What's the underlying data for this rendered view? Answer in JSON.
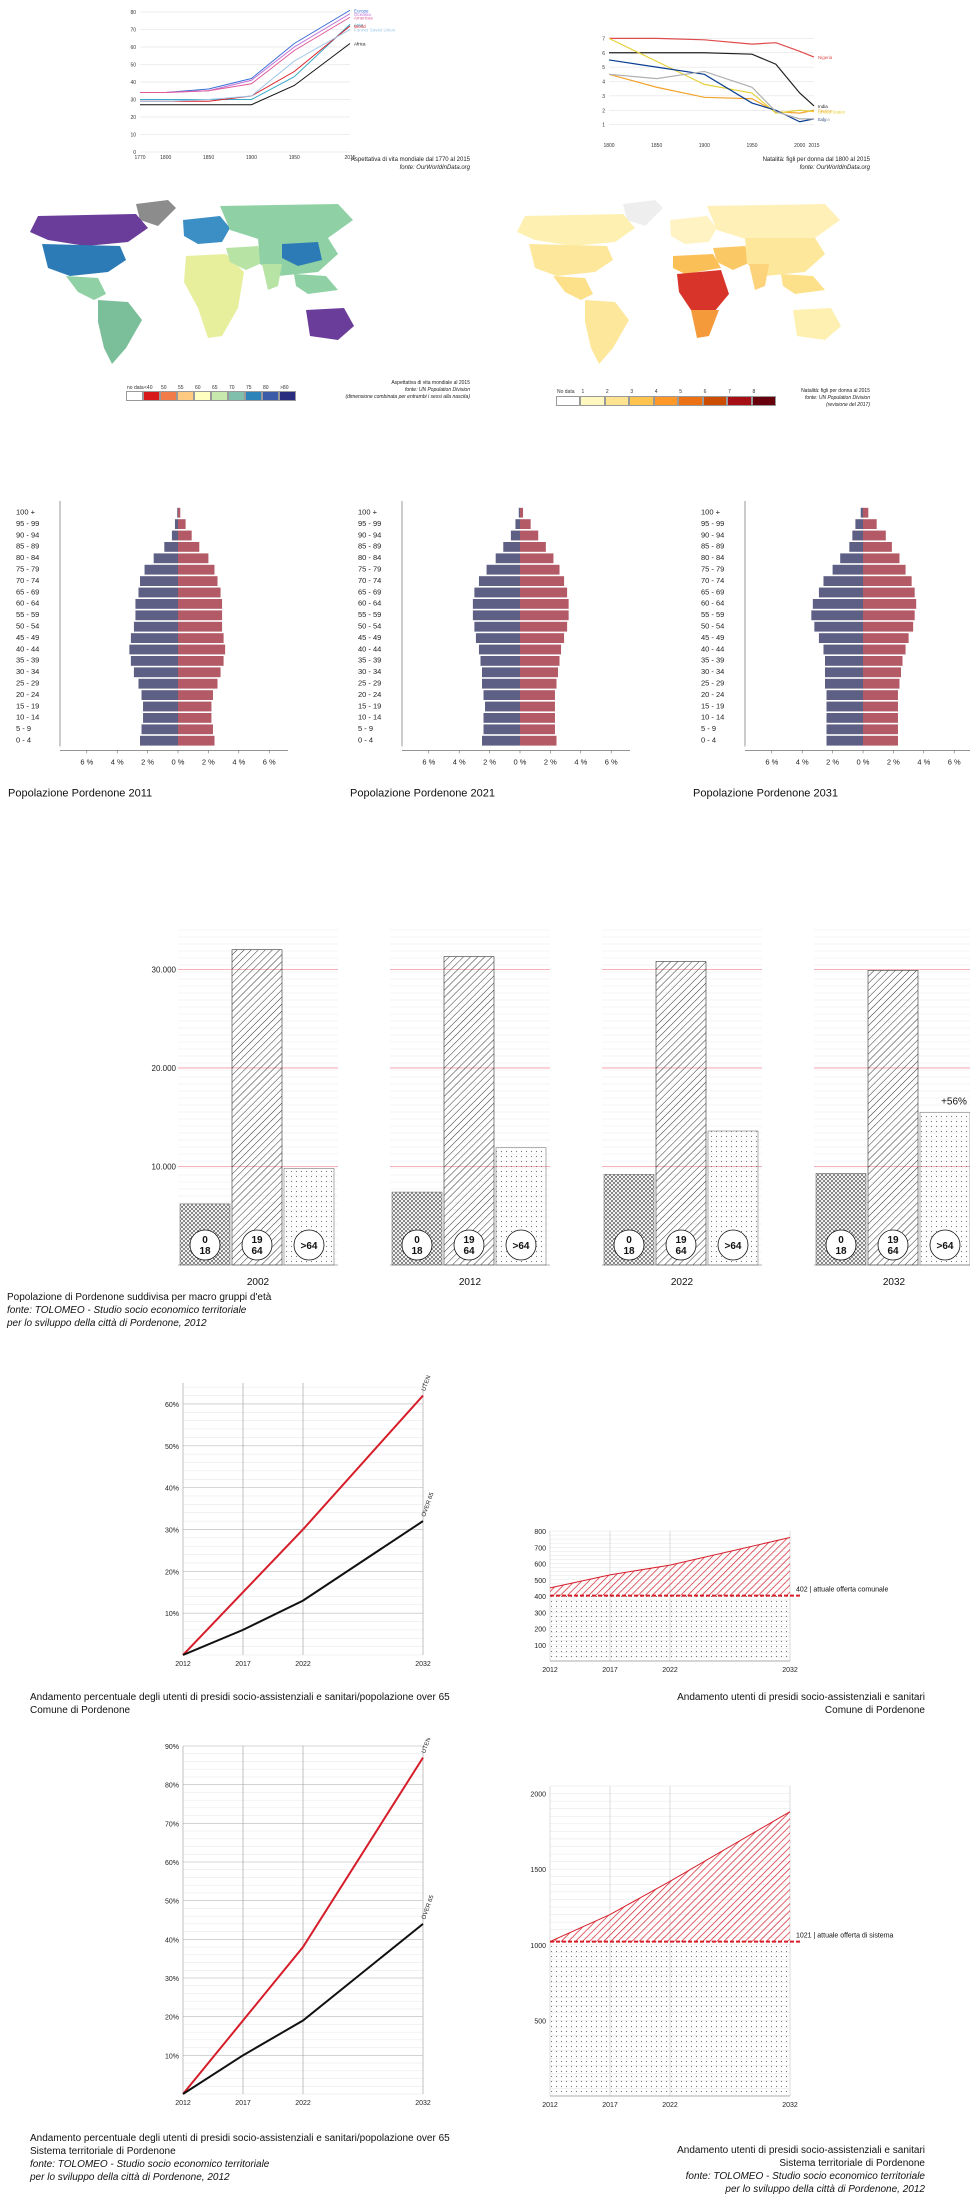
{
  "colors": {
    "male": "#5d5f85",
    "female": "#b45a66",
    "red_line": "#d61e2a",
    "black_line": "#111111",
    "grid_red": "#f4a0a6",
    "map_green": "#8fd1a4",
    "map_purple": "#6a3d9a",
    "map_blue": "#2c7bb6"
  },
  "top_left_chart": {
    "caption": "Aspettativa di vita mondiale dal 1770 al 2015",
    "source": "fonte: OurWorldInData.org",
    "chart_data": {
      "type": "line",
      "x": [
        1770,
        1800,
        1850,
        1900,
        1950,
        2015
      ],
      "xlabel": "",
      "ylabel": "",
      "ylim": [
        0,
        80
      ],
      "yticks": [
        0,
        10,
        20,
        30,
        40,
        50,
        60,
        70,
        80
      ],
      "xticks": [
        "1770",
        "1800",
        "1850",
        "1900",
        "1950",
        "2015"
      ],
      "series": [
        {
          "name": "Europe",
          "color": "#3a6fd8",
          "values": [
            34,
            34,
            36,
            42,
            62,
            81
          ]
        },
        {
          "name": "Oceania",
          "color": "#c06fd6",
          "values": [
            34,
            34,
            35,
            41,
            60,
            79
          ]
        },
        {
          "name": "Americas",
          "color": "#e05a9a",
          "values": [
            34,
            34,
            35,
            39,
            58,
            77
          ]
        },
        {
          "name": "Asia",
          "color": "#3aa9c9",
          "values": [
            30,
            30,
            30,
            30,
            43,
            73
          ]
        },
        {
          "name": "World",
          "color": "#d8232a",
          "values": [
            29,
            29,
            29,
            32,
            46,
            72
          ]
        },
        {
          "name": "Former Soviet Union",
          "color": "#9ac6e8",
          "values": [
            29,
            29,
            30,
            32,
            52,
            70
          ]
        },
        {
          "name": "Africa",
          "color": "#111111",
          "values": [
            27,
            27,
            27,
            27,
            38,
            62
          ]
        }
      ]
    }
  },
  "top_right_chart": {
    "caption": "Natalità: figli per donna dal 1800 al 2015",
    "source": "fonte: OurWorldInData.org",
    "chart_data": {
      "type": "line",
      "x": [
        1800,
        1850,
        1900,
        1950,
        1975,
        2000,
        2015
      ],
      "xlabel": "",
      "ylabel": "",
      "ylim": [
        0,
        8
      ],
      "yticks": [
        1,
        2,
        3,
        4,
        5,
        6,
        7
      ],
      "xticks": [
        "1800",
        "1850",
        "1900",
        "1950",
        "2000",
        "2015"
      ],
      "series": [
        {
          "name": "Nigeria",
          "color": "#e04b4b",
          "values": [
            7,
            7,
            6.9,
            6.6,
            6.7,
            6.1,
            5.7
          ]
        },
        {
          "name": "India",
          "color": "#222222",
          "values": [
            6,
            6,
            6,
            5.9,
            5.2,
            3.2,
            2.3
          ]
        },
        {
          "name": "France",
          "color": "#f2a42e",
          "values": [
            4.5,
            3.6,
            2.9,
            2.8,
            1.9,
            1.8,
            2.0
          ]
        },
        {
          "name": "United States",
          "color": "#e7d13b",
          "values": [
            7.0,
            5.4,
            3.8,
            3.2,
            1.8,
            2.0,
            1.9
          ]
        },
        {
          "name": "Italy",
          "color": "#0a3d91",
          "values": [
            5.5,
            5.0,
            4.5,
            2.5,
            2.0,
            1.2,
            1.4
          ]
        },
        {
          "name": "Japan",
          "color": "#b0b0b0",
          "values": [
            4.5,
            4.2,
            4.7,
            3.6,
            1.9,
            1.4,
            1.4
          ]
        }
      ]
    }
  },
  "map_left": {
    "caption": "Aspettativa di vita mondiale al 2015",
    "source": "fonte: UN Population Division",
    "note": "(dimensione combinata per entrambi i sessi alla nascita)",
    "legend_labels": [
      "no data",
      "<40",
      "50",
      "55",
      "60",
      "65",
      "70",
      "75",
      "80",
      ">80"
    ]
  },
  "map_right": {
    "caption": "Natalità: figli per donna al 2015",
    "source": "fonte: UN Population Division",
    "note": "(revisione del 2017)",
    "legend_labels": [
      "No data",
      "1",
      "2",
      "3",
      "4",
      "5",
      "6",
      "7",
      "8"
    ]
  },
  "pyramids": {
    "age_groups": [
      "100 +",
      "95 - 99",
      "90 - 94",
      "85 - 89",
      "80 - 84",
      "75 - 79",
      "70 - 74",
      "65 - 69",
      "60 - 64",
      "55 - 59",
      "50 - 54",
      "45 - 49",
      "40 - 44",
      "35 - 39",
      "30 - 34",
      "25 - 29",
      "20 - 24",
      "15 - 19",
      "10 - 14",
      "5 - 9",
      "0 - 4"
    ],
    "axis_ticks": [
      "6 %",
      "4 %",
      "2 %",
      "0 %",
      "2 %",
      "4 %",
      "6 %"
    ],
    "charts": [
      {
        "title": "Popolazione Pordenone 2011",
        "chart_data": {
          "type": "bar",
          "male": [
            0.05,
            0.2,
            0.4,
            0.9,
            1.6,
            2.2,
            2.5,
            2.6,
            2.8,
            2.8,
            2.9,
            3.1,
            3.2,
            3.1,
            2.9,
            2.6,
            2.4,
            2.3,
            2.3,
            2.4,
            2.5
          ],
          "female": [
            0.15,
            0.5,
            0.9,
            1.4,
            2.0,
            2.4,
            2.6,
            2.8,
            2.9,
            2.9,
            2.9,
            3.0,
            3.1,
            3.0,
            2.8,
            2.6,
            2.3,
            2.2,
            2.2,
            2.3,
            2.4
          ],
          "xlim": [
            -6,
            6
          ]
        }
      },
      {
        "title": "Popolazione Pordenone 2021",
        "chart_data": {
          "type": "bar",
          "male": [
            0.08,
            0.3,
            0.6,
            1.1,
            1.6,
            2.2,
            2.7,
            3.0,
            3.1,
            3.1,
            3.0,
            2.9,
            2.7,
            2.6,
            2.5,
            2.5,
            2.4,
            2.3,
            2.4,
            2.4,
            2.5
          ],
          "female": [
            0.2,
            0.7,
            1.2,
            1.7,
            2.2,
            2.6,
            2.9,
            3.1,
            3.2,
            3.2,
            3.1,
            2.9,
            2.7,
            2.6,
            2.5,
            2.4,
            2.3,
            2.3,
            2.3,
            2.3,
            2.4
          ],
          "xlim": [
            -6,
            6
          ]
        }
      },
      {
        "title": "Popolazione Pordenone 2031",
        "chart_data": {
          "type": "bar",
          "male": [
            0.15,
            0.5,
            0.7,
            0.9,
            1.5,
            2.0,
            2.6,
            2.9,
            3.3,
            3.4,
            3.2,
            2.9,
            2.6,
            2.5,
            2.5,
            2.5,
            2.4,
            2.4,
            2.4,
            2.4,
            2.4
          ],
          "female": [
            0.35,
            0.9,
            1.5,
            1.9,
            2.4,
            2.8,
            3.2,
            3.4,
            3.5,
            3.4,
            3.3,
            3.0,
            2.8,
            2.6,
            2.5,
            2.4,
            2.3,
            2.3,
            2.3,
            2.3,
            2.3
          ],
          "xlim": [
            -6,
            6
          ]
        }
      }
    ]
  },
  "macro_groups": {
    "yticks": [
      "30.000",
      "20.000",
      "10.000"
    ],
    "group_labels": [
      [
        "0",
        "18"
      ],
      [
        "19",
        "64"
      ],
      [
        ">64"
      ]
    ],
    "annotation": "+56%",
    "caption": "Popolazione di Pordenone suddivisa per macro gruppi d'età",
    "source_1": "fonte: TOLOMEO - Studio socio economico territoriale",
    "source_2": "per lo sviluppo della città di Pordenone, 2012",
    "chart_data": {
      "type": "bar",
      "categories": [
        "2002",
        "2012",
        "2022",
        "2032"
      ],
      "ylim": [
        0,
        34000
      ],
      "series": [
        {
          "name": "0 - 18",
          "values": [
            6200,
            7400,
            9200,
            9300
          ]
        },
        {
          "name": "19 - 64",
          "values": [
            32000,
            31300,
            30800,
            29900
          ]
        },
        {
          "name": ">64",
          "values": [
            9800,
            11900,
            13600,
            15500
          ]
        }
      ]
    }
  },
  "line_pct_comune": {
    "caption_1": "Andamento percentuale degli utenti di presidi socio-assistenziali e sanitari/popolazione over 65",
    "caption_2": "Comune di Pordenone",
    "chart_data": {
      "type": "line",
      "x": [
        "2012",
        "2017",
        "2022",
        "2032"
      ],
      "ylim": [
        0,
        65
      ],
      "yticks": [
        "10%",
        "20%",
        "30%",
        "40%",
        "50%",
        "60%"
      ],
      "series": [
        {
          "name": "UTENTI PRESIDI",
          "values": [
            0,
            15,
            30,
            62
          ]
        },
        {
          "name": "OVER 65",
          "values": [
            0,
            6,
            13,
            32
          ]
        }
      ]
    }
  },
  "area_comune": {
    "caption_1": "Andamento utenti di presidi socio-assistenziali e sanitari",
    "caption_2": "Comune di Pordenone",
    "offer_label": "402 | attuale offerta comunale",
    "chart_data": {
      "type": "area",
      "x": [
        "2012",
        "2017",
        "2022",
        "2032"
      ],
      "ylim": [
        0,
        800
      ],
      "yticks": [
        "100",
        "200",
        "300",
        "400",
        "500",
        "600",
        "700",
        "800"
      ],
      "values": [
        450,
        530,
        590,
        760
      ],
      "offer": 402
    }
  },
  "line_pct_sistema": {
    "caption_1": "Andamento percentuale degli utenti di presidi socio-assistenziali e sanitari/popolazione over 65",
    "caption_2": "Sistema territoriale di Pordenone",
    "source_1": "fonte: TOLOMEO - Studio socio economico territoriale",
    "source_2": "per lo sviluppo della città di Pordenone, 2012",
    "chart_data": {
      "type": "line",
      "x": [
        "2012",
        "2017",
        "2022",
        "2032"
      ],
      "ylim": [
        0,
        90
      ],
      "yticks": [
        "10%",
        "20%",
        "30%",
        "40%",
        "50%",
        "60%",
        "70%",
        "80%",
        "90%"
      ],
      "series": [
        {
          "name": "UTENTI PRESIDI",
          "values": [
            0,
            19,
            38,
            87
          ]
        },
        {
          "name": "OVER 65",
          "values": [
            0,
            10,
            19,
            44
          ]
        }
      ]
    }
  },
  "area_sistema": {
    "caption_1": "Andamento utenti di presidi socio-assistenziali e sanitari",
    "caption_2": "Sistema territoriale di Pordenone",
    "source_1": "fonte: TOLOMEO - Studio socio economico territoriale",
    "source_2": "per lo sviluppo della città di Pordenone, 2012",
    "offer_label": "1021 | attuale offerta di sistema",
    "chart_data": {
      "type": "area",
      "x": [
        "2012",
        "2017",
        "2022",
        "2032"
      ],
      "ylim": [
        0,
        2050
      ],
      "yticks": [
        "500",
        "1000",
        "1500",
        "2000"
      ],
      "values": [
        1021,
        1200,
        1420,
        1880
      ],
      "offer": 1021
    }
  }
}
